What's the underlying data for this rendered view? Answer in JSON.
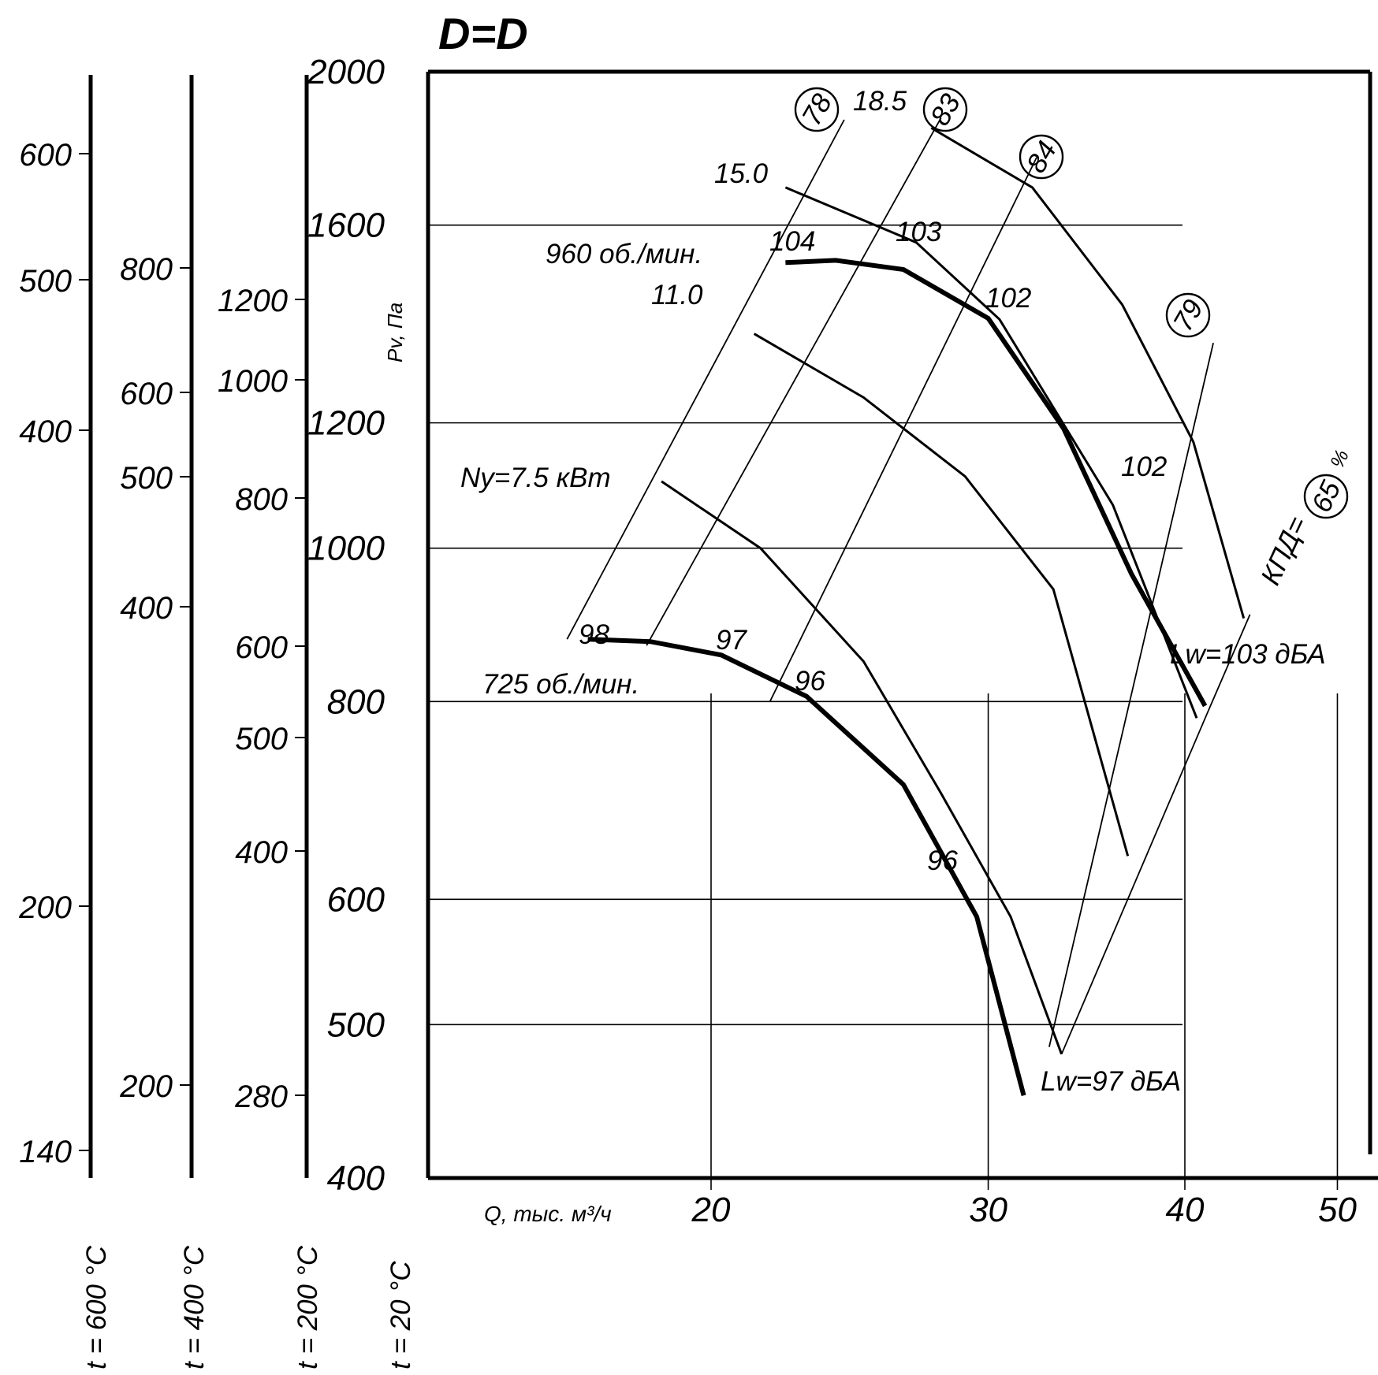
{
  "chart_data": {
    "type": "line",
    "title": "D=D",
    "xlabel": "Q, тыс. м³/ч",
    "ylabel": "Pv, Па",
    "x_scale": "log",
    "y_scale": "log",
    "xlim": [
      13,
      51
    ],
    "ylim": [
      400,
      2000
    ],
    "x_ticks": [
      20,
      30,
      40,
      50
    ],
    "y_ticks": [
      400,
      500,
      600,
      800,
      1000,
      1200,
      1600,
      2000
    ],
    "temperature_scales": [
      {
        "label": "t = 20 °C",
        "ticks": [
          400,
          500,
          600,
          800,
          1000,
          1200,
          1600,
          2000
        ]
      },
      {
        "label": "t = 200 °C",
        "ticks": [
          280,
          400,
          500,
          600,
          800,
          1000,
          1200
        ]
      },
      {
        "label": "t = 400 °C",
        "ticks": [
          200,
          400,
          500,
          600,
          800
        ]
      },
      {
        "label": "t = 600 °C",
        "ticks": [
          140,
          200,
          400,
          500,
          600
        ]
      }
    ],
    "speed_curves": [
      {
        "label": "725 об./мин.",
        "points": [
          [
            16.7,
            876
          ],
          [
            18.3,
            873
          ],
          [
            20.3,
            856
          ],
          [
            23.0,
            806
          ],
          [
            26.5,
            709
          ],
          [
            29.5,
            585
          ],
          [
            31.6,
            451
          ]
        ]
      },
      {
        "label": "960 об./мин.",
        "points": [
          [
            22.3,
            1515
          ],
          [
            24.0,
            1520
          ],
          [
            26.5,
            1500
          ],
          [
            30.0,
            1397
          ],
          [
            33.5,
            1190
          ],
          [
            37.0,
            963
          ],
          [
            41.2,
            795
          ]
        ]
      }
    ],
    "power_curves": [
      {
        "label": "Ny=7.5 кВт",
        "points": [
          [
            18.6,
            1102
          ],
          [
            21.5,
            1000
          ],
          [
            25.0,
            848
          ],
          [
            28.0,
            700
          ],
          [
            31.0,
            585
          ],
          [
            33.4,
            479
          ]
        ]
      },
      {
        "label": "11.0",
        "points": [
          [
            21.3,
            1366
          ],
          [
            25.0,
            1245
          ],
          [
            29.0,
            1110
          ],
          [
            33.0,
            942
          ],
          [
            36.8,
            639
          ]
        ]
      },
      {
        "label": "15.0",
        "points": [
          [
            22.3,
            1690
          ],
          [
            27.0,
            1560
          ],
          [
            30.5,
            1395
          ],
          [
            36.0,
            1065
          ],
          [
            40.7,
            781
          ]
        ]
      },
      {
        "label": "18.5",
        "points": [
          [
            27.6,
            1843
          ],
          [
            32.0,
            1690
          ],
          [
            36.5,
            1425
          ],
          [
            40.5,
            1167
          ],
          [
            43.6,
            903
          ]
        ]
      }
    ],
    "efficiency_lines": [
      {
        "label": "78",
        "points": [
          [
            16.2,
            876
          ],
          [
            24.3,
            1865
          ]
        ]
      },
      {
        "label": "83",
        "points": [
          [
            18.2,
            868
          ],
          [
            28.0,
            1870
          ]
        ]
      },
      {
        "label": "84",
        "points": [
          [
            21.8,
            800
          ],
          [
            32.2,
            1765
          ]
        ]
      },
      {
        "label": "79",
        "points": [
          [
            32.8,
            484
          ],
          [
            41.7,
            1348
          ]
        ]
      },
      {
        "label": "КПД=65%",
        "points": [
          [
            33.4,
            479
          ],
          [
            41.3,
            785
          ],
          [
            44.0,
            908
          ]
        ]
      }
    ],
    "noise_labels": [
      "98",
      "97",
      "96",
      "96",
      "104",
      "103",
      "102",
      "102"
    ],
    "annotations": [
      "Lw=97 дБА",
      "Lw=103 дБА",
      "КПД=",
      "65",
      "%",
      "78",
      "83",
      "84",
      "79",
      "18.5",
      "15.0",
      "11.0",
      "960 об./мин.",
      "725 об./мин.",
      "Ny=7.5 кВт"
    ],
    "grid": true
  }
}
